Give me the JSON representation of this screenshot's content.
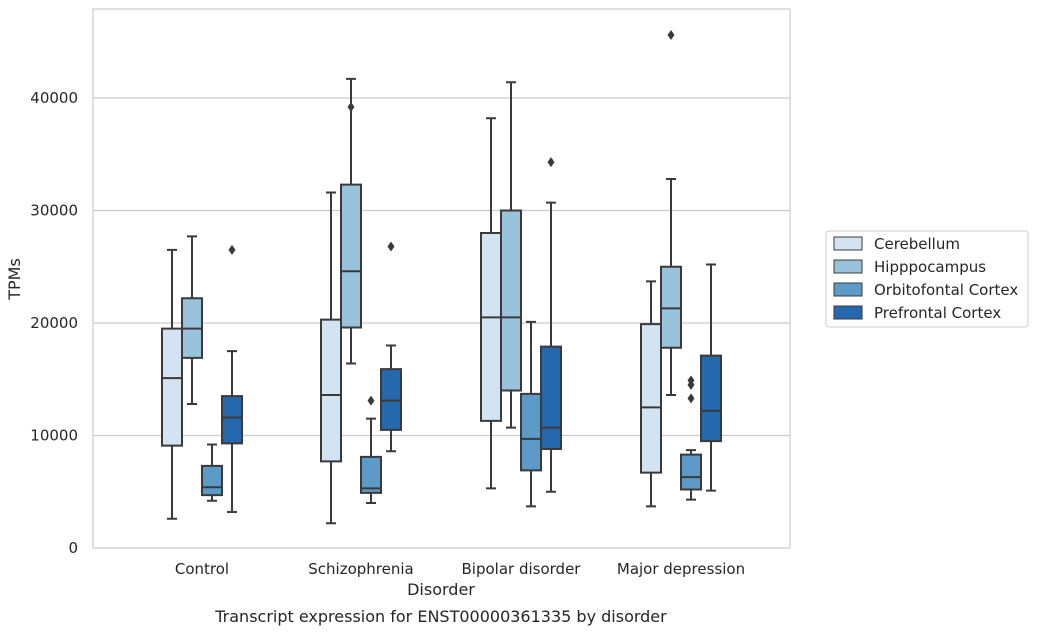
{
  "chart_data": {
    "type": "box",
    "xlabel": "Disorder",
    "ylabel": "TPMs",
    "caption": "Transcript expression for ENST00000361335 by disorder",
    "ylim": [
      0,
      48000
    ],
    "yticks": [
      0,
      10000,
      20000,
      30000,
      40000
    ],
    "grid": "horizontal",
    "legend_position": "right",
    "categories": [
      "Control",
      "Schizophrenia",
      "Bipolar disorder",
      "Major depression"
    ],
    "series": [
      {
        "name": "Cerebellum",
        "color": "#d3e3f2",
        "boxes": [
          {
            "whisker_low": 2600,
            "q1": 9100,
            "median": 15100,
            "q3": 19500,
            "whisker_high": 26500,
            "outliers": []
          },
          {
            "whisker_low": 2200,
            "q1": 7700,
            "median": 13600,
            "q3": 20300,
            "whisker_high": 31600,
            "outliers": []
          },
          {
            "whisker_low": 5300,
            "q1": 11300,
            "median": 20500,
            "q3": 28000,
            "whisker_high": 38200,
            "outliers": []
          },
          {
            "whisker_low": 3700,
            "q1": 6700,
            "median": 12500,
            "q3": 19900,
            "whisker_high": 23700,
            "outliers": []
          }
        ]
      },
      {
        "name": "Hipppocampus",
        "color": "#99c2dc",
        "boxes": [
          {
            "whisker_low": 12800,
            "q1": 16900,
            "median": 19500,
            "q3": 22200,
            "whisker_high": 27700,
            "outliers": []
          },
          {
            "whisker_low": 16400,
            "q1": 19600,
            "median": 24600,
            "q3": 32300,
            "whisker_high": 41700,
            "outliers": [
              39200
            ]
          },
          {
            "whisker_low": 10700,
            "q1": 14000,
            "median": 20500,
            "q3": 30000,
            "whisker_high": 41400,
            "outliers": []
          },
          {
            "whisker_low": 13600,
            "q1": 17800,
            "median": 21300,
            "q3": 25000,
            "whisker_high": 32800,
            "outliers": [
              45600
            ]
          }
        ]
      },
      {
        "name": "Orbitofontal Cortex",
        "color": "#5c9ac8",
        "boxes": [
          {
            "whisker_low": 4200,
            "q1": 4700,
            "median": 5400,
            "q3": 7300,
            "whisker_high": 9200,
            "outliers": []
          },
          {
            "whisker_low": 4000,
            "q1": 4900,
            "median": 5300,
            "q3": 8100,
            "whisker_high": 11500,
            "outliers": [
              13100
            ]
          },
          {
            "whisker_low": 3700,
            "q1": 6900,
            "median": 9700,
            "q3": 13700,
            "whisker_high": 20100,
            "outliers": []
          },
          {
            "whisker_low": 4300,
            "q1": 5200,
            "median": 6300,
            "q3": 8300,
            "whisker_high": 8700,
            "outliers": [
              13300,
              14500,
              14900
            ]
          }
        ]
      },
      {
        "name": "Prefrontal Cortex",
        "color": "#2668ad",
        "boxes": [
          {
            "whisker_low": 3200,
            "q1": 9300,
            "median": 11600,
            "q3": 13500,
            "whisker_high": 17500,
            "outliers": [
              26500
            ]
          },
          {
            "whisker_low": 8600,
            "q1": 10500,
            "median": 13100,
            "q3": 15900,
            "whisker_high": 18000,
            "outliers": [
              26800
            ]
          },
          {
            "whisker_low": 5000,
            "q1": 8800,
            "median": 10700,
            "q3": 17900,
            "whisker_high": 30700,
            "outliers": [
              34300
            ]
          },
          {
            "whisker_low": 5100,
            "q1": 9500,
            "median": 12200,
            "q3": 17100,
            "whisker_high": 25200,
            "outliers": []
          }
        ]
      }
    ]
  }
}
